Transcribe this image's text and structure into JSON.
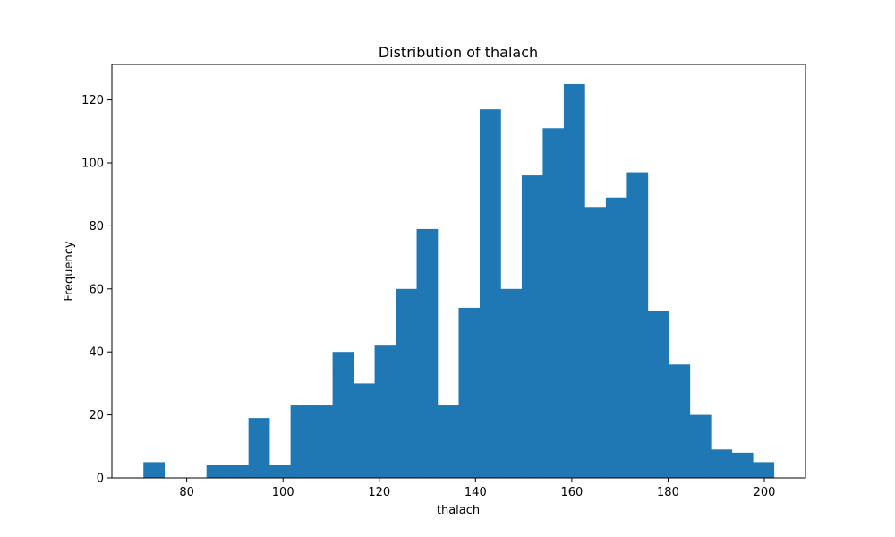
{
  "chart_data": {
    "type": "bar",
    "title": "Distribution of thalach",
    "xlabel": "thalach",
    "ylabel": "Frequency",
    "color": "#1f77b4",
    "bin_start": 71,
    "bin_width": 4.3667,
    "values": [
      5,
      0,
      0,
      4,
      4,
      19,
      4,
      23,
      23,
      40,
      30,
      42,
      60,
      79,
      23,
      54,
      117,
      60,
      96,
      111,
      125,
      86,
      89,
      97,
      53,
      36,
      20,
      9,
      8,
      5
    ],
    "xlim": [
      64.45,
      208.55
    ],
    "ylim": [
      0,
      131.25
    ],
    "xticks": [
      80,
      100,
      120,
      140,
      160,
      180,
      200
    ],
    "yticks": [
      0,
      20,
      40,
      60,
      80,
      100,
      120
    ],
    "grid": false,
    "legend": "none"
  }
}
